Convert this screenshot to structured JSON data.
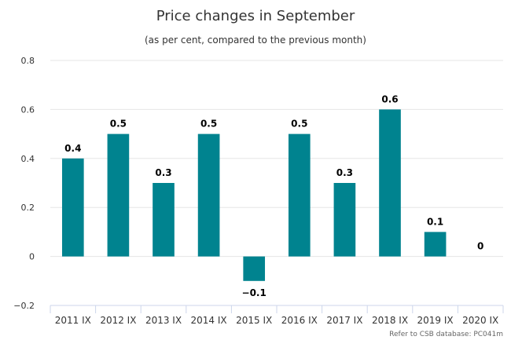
{
  "chart_data": {
    "type": "bar",
    "title": "Price changes in September",
    "subtitle": "(as per cent, compared to the previous month)",
    "categories": [
      "2011 IX",
      "2012 IX",
      "2013 IX",
      "2014 IX",
      "2015 IX",
      "2016 IX",
      "2017 IX",
      "2018 IX",
      "2019 IX",
      "2020 IX"
    ],
    "values": [
      0.4,
      0.5,
      0.3,
      0.5,
      -0.1,
      0.5,
      0.3,
      0.6,
      0.1,
      0
    ],
    "data_labels": [
      "0.4",
      "0.5",
      "0.3",
      "0.5",
      "−0.1",
      "0.5",
      "0.3",
      "0.6",
      "0.1",
      "0"
    ],
    "ylim": [
      -0.2,
      0.8
    ],
    "yticks": [
      -0.2,
      0,
      0.2,
      0.4,
      0.6,
      0.8
    ],
    "ytick_labels": [
      "−0.2",
      "0",
      "0.2",
      "0.4",
      "0.6",
      "0.8"
    ],
    "grid": true,
    "legend": "none",
    "bar_color": "#00838f",
    "credit": "Refer to CSB database: PC041m"
  }
}
